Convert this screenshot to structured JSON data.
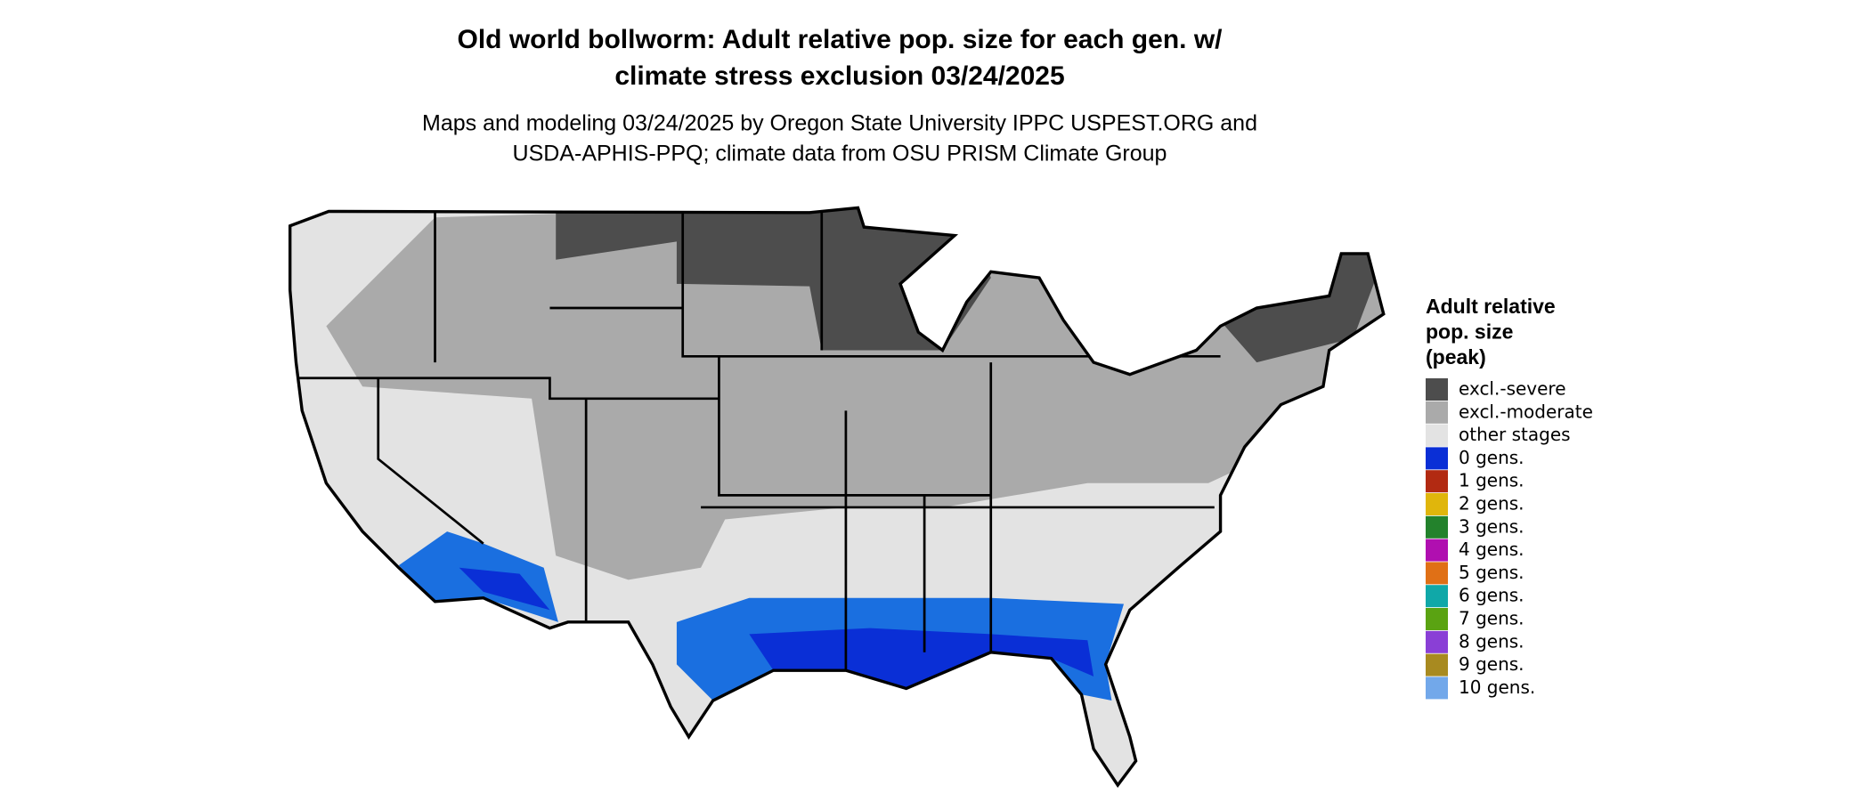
{
  "header": {
    "title": [
      "Old world bollworm: Adult relative pop. size for each gen. w/",
      "climate stress exclusion 03/24/2025"
    ],
    "subtitle": [
      "Maps and modeling 03/24/2025 by Oregon State University IPPC USPEST.ORG and",
      "USDA-APHIS-PPQ; climate data from OSU PRISM Climate Group"
    ]
  },
  "legend": {
    "title": [
      "Adult relative",
      "pop. size",
      "(peak)"
    ],
    "items": [
      {
        "label": "excl.-severe",
        "color": "#4d4d4d"
      },
      {
        "label": "excl.-moderate",
        "color": "#aaaaaa"
      },
      {
        "label": "other stages",
        "color": "#e3e3e3"
      },
      {
        "label": "0 gens.",
        "color": "#0a2fd6"
      },
      {
        "label": "1 gens.",
        "color": "#b22a12"
      },
      {
        "label": "2 gens.",
        "color": "#e0b60c"
      },
      {
        "label": "3 gens.",
        "color": "#23822c"
      },
      {
        "label": "4 gens.",
        "color": "#b00fb0"
      },
      {
        "label": "5 gens.",
        "color": "#e07016"
      },
      {
        "label": "6 gens.",
        "color": "#10a8a8"
      },
      {
        "label": "7 gens.",
        "color": "#5aa312"
      },
      {
        "label": "8 gens.",
        "color": "#8a3fd6"
      },
      {
        "label": "9 gens.",
        "color": "#a88a20"
      },
      {
        "label": "10 gens.",
        "color": "#72a8ea"
      }
    ]
  }
}
